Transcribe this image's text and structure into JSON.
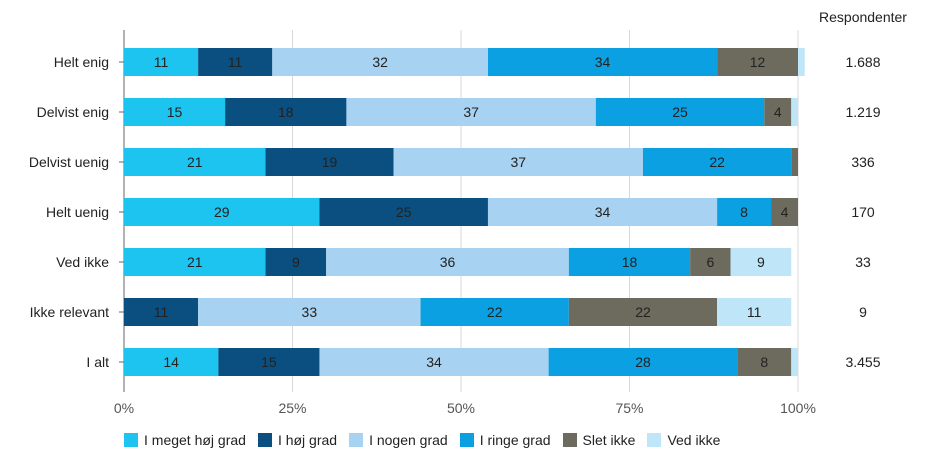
{
  "chart_data": {
    "type": "bar",
    "orientation": "horizontal",
    "stacked": true,
    "title": "",
    "xlabel": "",
    "ylabel": "",
    "xlim": [
      0,
      100
    ],
    "x_ticks": [
      "0%",
      "25%",
      "50%",
      "75%",
      "100%"
    ],
    "right_header": "Respondenter",
    "categories": [
      "Helt enig",
      "Delvist enig",
      "Delvist uenig",
      "Helt uenig",
      "Ved ikke",
      "Ikke relevant",
      "I alt"
    ],
    "respondents": [
      "1.688",
      "1.219",
      "336",
      "170",
      "33",
      "9",
      "3.455"
    ],
    "series": [
      {
        "name": "I meget høj grad",
        "color": "#1ec4f0",
        "label_color": "#222222",
        "values": [
          11,
          15,
          21,
          29,
          21,
          0,
          14
        ]
      },
      {
        "name": "I høj grad",
        "color": "#0a4f80",
        "label_color": "#222222",
        "values": [
          11,
          18,
          19,
          25,
          9,
          11,
          15
        ]
      },
      {
        "name": "I nogen grad",
        "color": "#a8d2f1",
        "label_color": "#222222",
        "values": [
          32,
          37,
          37,
          34,
          36,
          33,
          34
        ]
      },
      {
        "name": "I ringe grad",
        "color": "#0aa0e2",
        "label_color": "#222222",
        "values": [
          34,
          25,
          22,
          8,
          18,
          22,
          28
        ]
      },
      {
        "name": "Slet ikke",
        "color": "#6d6b5e",
        "label_color": "#222222",
        "values": [
          12,
          4,
          1,
          4,
          6,
          22,
          8
        ]
      },
      {
        "name": "Ved ikke",
        "color": "#bfe5f9",
        "label_color": "#222222",
        "values": [
          1,
          1,
          0,
          0,
          9,
          11,
          1
        ]
      }
    ],
    "data_labels": [
      [
        "11",
        "15",
        "21",
        "29",
        "21",
        "",
        "14"
      ],
      [
        "11",
        "18",
        "19",
        "25",
        "9",
        "11",
        "15"
      ],
      [
        "32",
        "37",
        "37",
        "34",
        "36",
        "33",
        "34"
      ],
      [
        "34",
        "25",
        "22",
        "8",
        "18",
        "22",
        "28"
      ],
      [
        "12",
        "4",
        "",
        "4",
        "6",
        "22",
        "8"
      ],
      [
        "",
        "",
        "",
        "",
        "9",
        "11",
        ""
      ]
    ],
    "legend_position": "bottom",
    "grid": true
  }
}
